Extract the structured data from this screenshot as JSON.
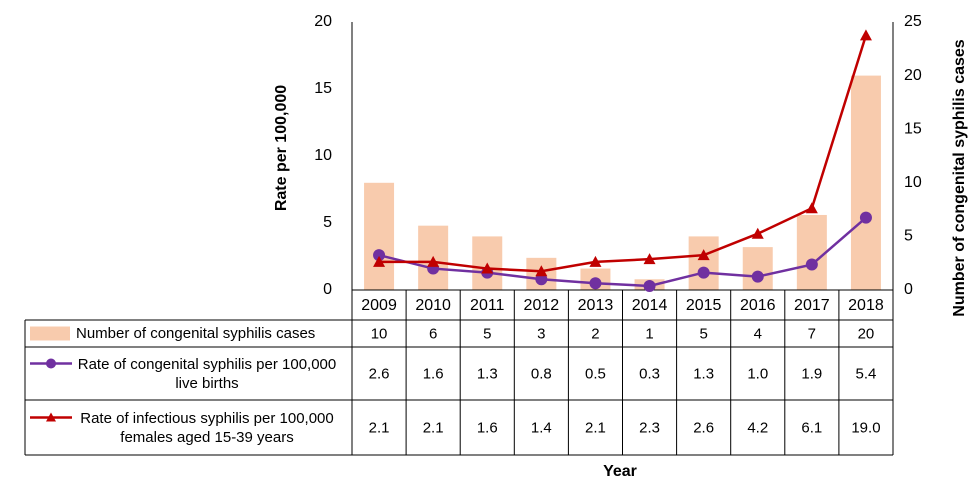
{
  "chart_data": {
    "type": "bar-line",
    "categories": [
      "2009",
      "2010",
      "2011",
      "2012",
      "2013",
      "2014",
      "2015",
      "2016",
      "2017",
      "2018"
    ],
    "series": [
      {
        "name": "Number of congenital syphilis cases",
        "type": "bar",
        "axis": "y2",
        "color": "#f8cbad",
        "values": [
          10,
          6,
          5,
          3,
          2,
          1,
          5,
          4,
          7,
          20
        ]
      },
      {
        "name": "Rate of congenital syphilis per 100,000 live births",
        "type": "line",
        "marker": "circle",
        "color": "#7030a0",
        "values": [
          2.6,
          1.6,
          1.3,
          0.8,
          0.5,
          0.3,
          1.3,
          1.0,
          1.9,
          5.4
        ],
        "value_labels": [
          "2.6",
          "1.6",
          "1.3",
          "0.8",
          "0.5",
          "0.3",
          "1.3",
          "1.0",
          "1.9",
          "5.4"
        ]
      },
      {
        "name": "Rate of infectious syphilis per 100,000 females aged 15-39 years",
        "type": "line",
        "marker": "triangle",
        "color": "#c00000",
        "values": [
          2.1,
          2.1,
          1.6,
          1.4,
          2.1,
          2.3,
          2.6,
          4.2,
          6.1,
          19.0
        ],
        "value_labels": [
          "2.1",
          "2.1",
          "1.6",
          "1.4",
          "2.1",
          "2.3",
          "2.6",
          "4.2",
          "6.1",
          "19.0"
        ]
      }
    ],
    "y_label": "Rate per 100,000",
    "y2_label": "Number of congenital syphilis cases",
    "x_label": "Year",
    "ylim": [
      0,
      20
    ],
    "yticks": [
      0,
      5,
      10,
      15,
      20
    ],
    "y2lim": [
      0,
      25
    ],
    "y2ticks": [
      0,
      5,
      10,
      15,
      20,
      25
    ]
  }
}
